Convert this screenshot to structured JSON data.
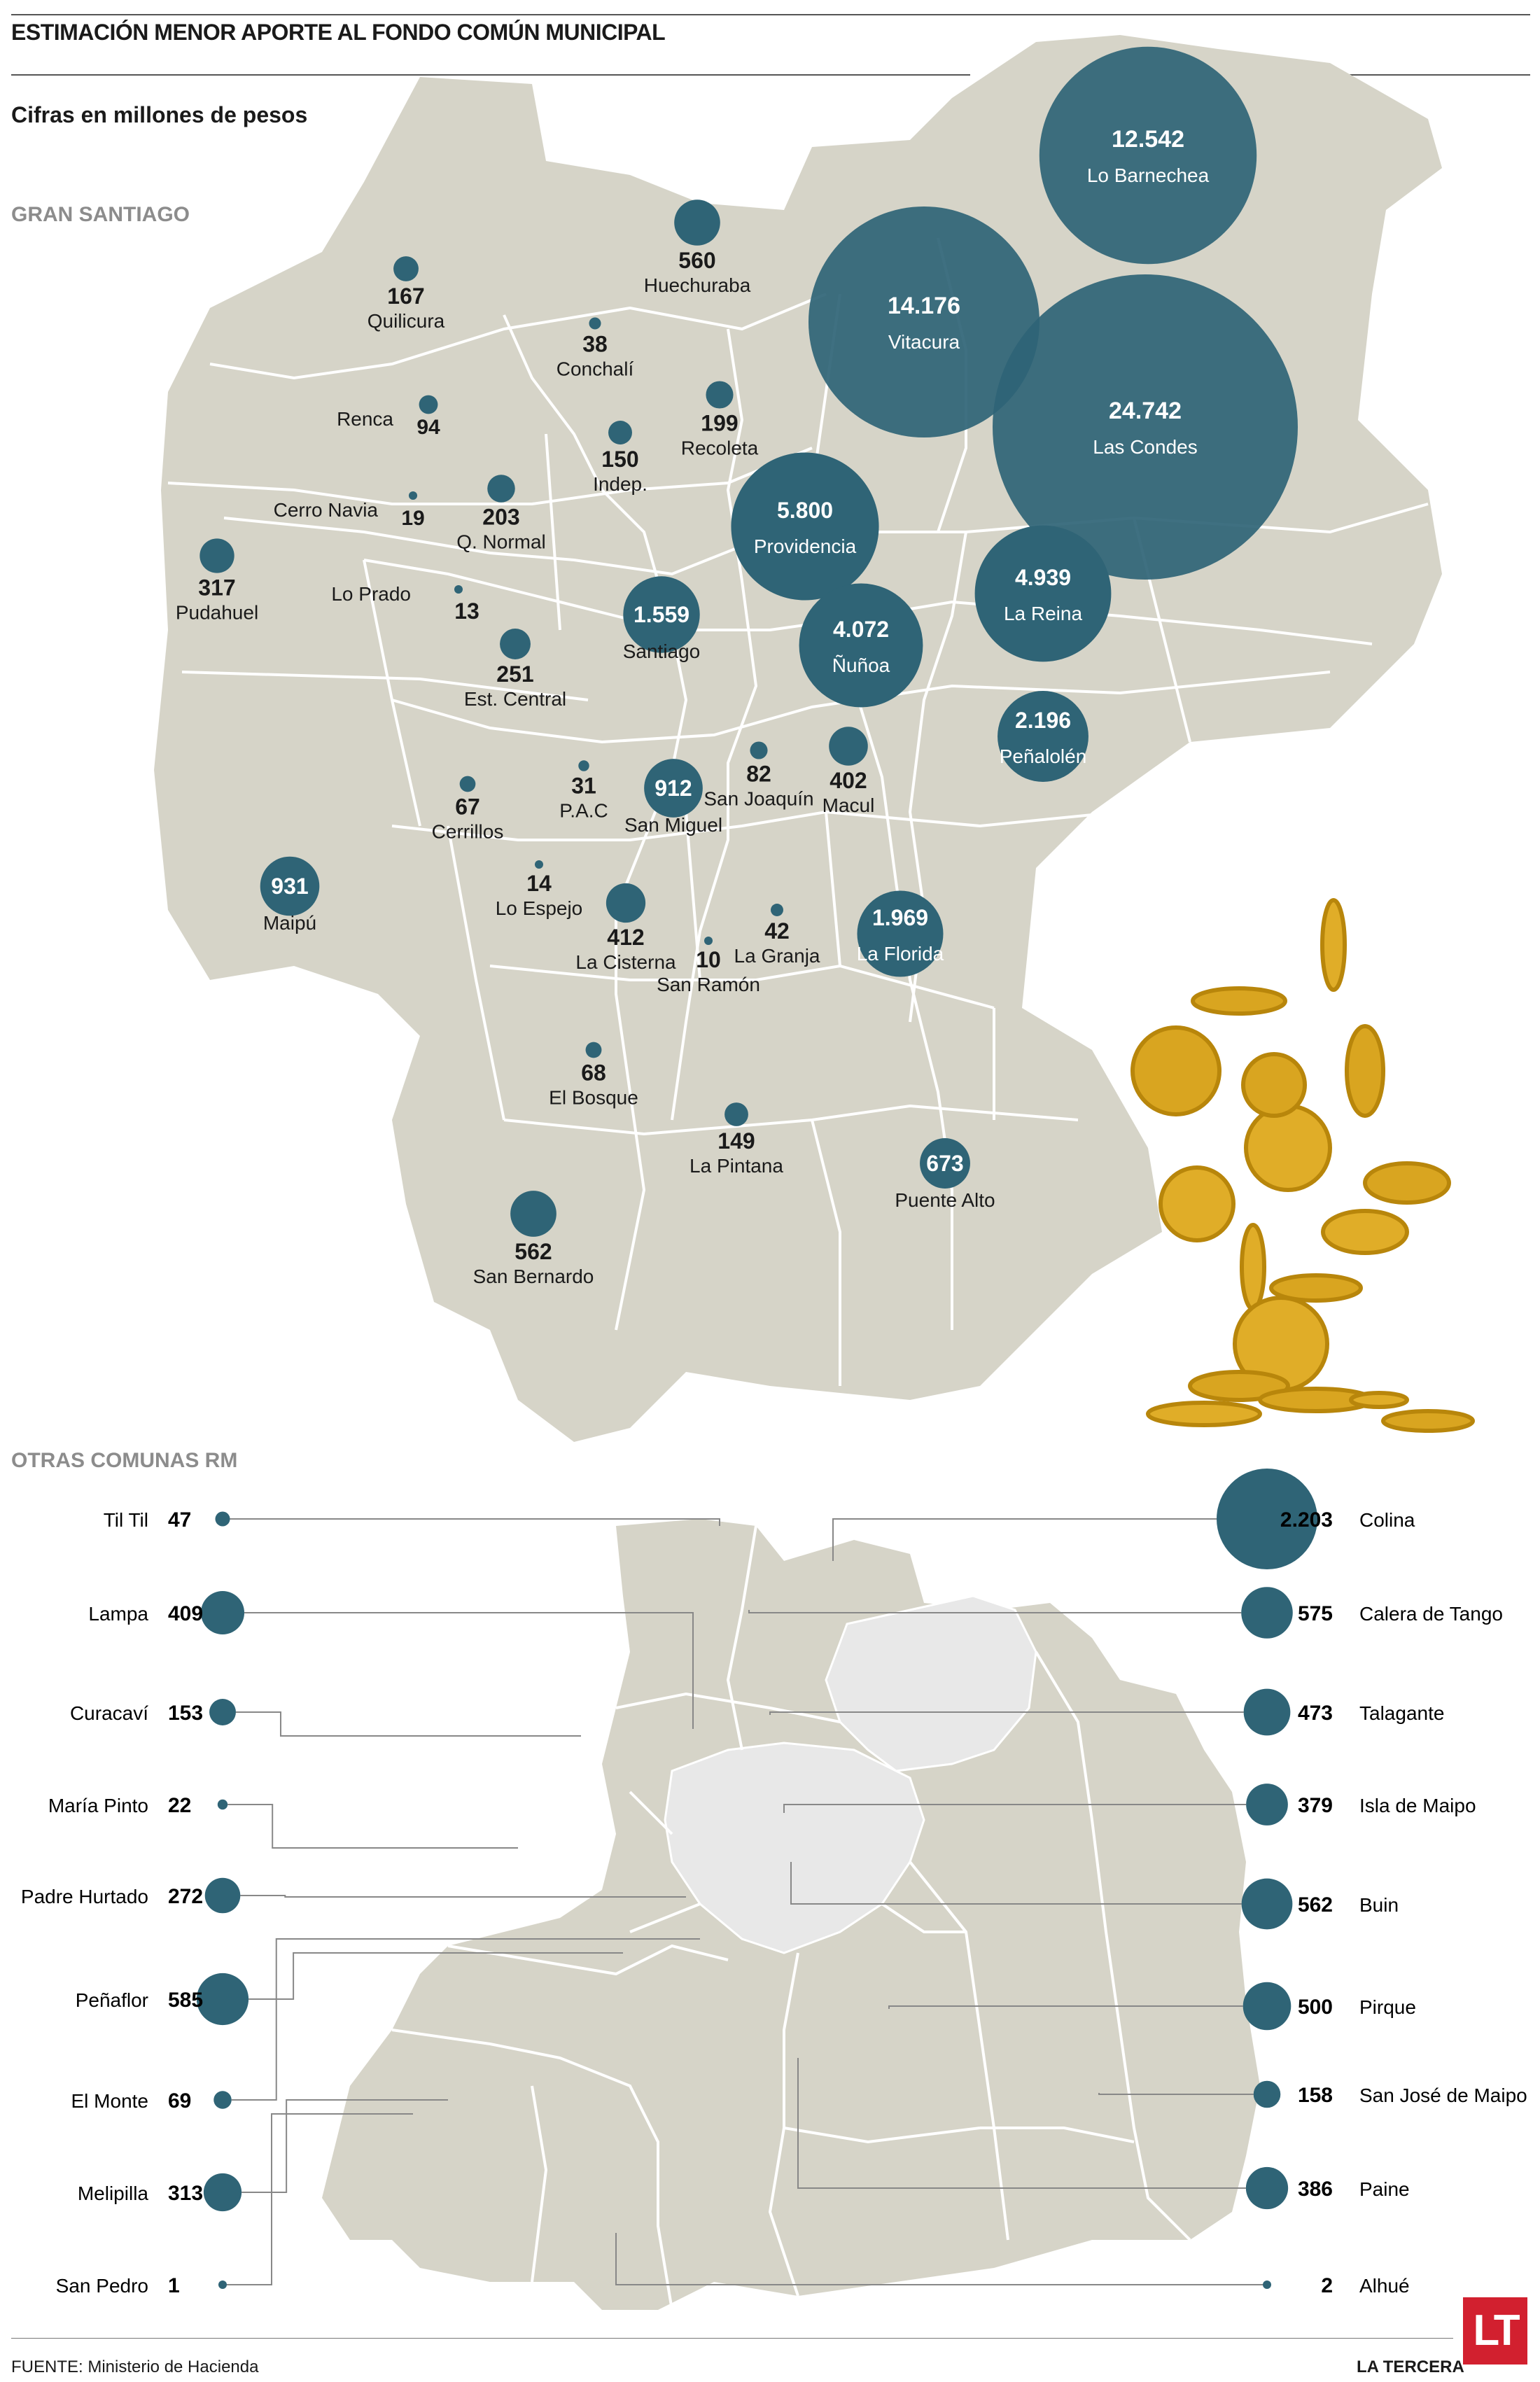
{
  "title": "ESTIMACIÓN MENOR APORTE AL FONDO COMÚN MUNICIPAL",
  "subtitle": "Cifras en millones de pesos",
  "section_gran_santiago": "GRAN SANTIAGO",
  "section_otras": "OTRAS COMUNAS RM",
  "source": "FUENTE: Ministerio de Hacienda",
  "brand": "LA TERCERA",
  "logo_text": "LT",
  "colors": {
    "bubble": "#2f6476",
    "bubble_small": "#3a7485",
    "map_fill": "#d6d4c8",
    "map_stroke": "#ffffff",
    "metro_highlight": "#e8e8e8"
  },
  "gran_santiago": [
    {
      "comuna": "Lo Barnechea",
      "value": "12.542",
      "v": 12542
    },
    {
      "comuna": "Vitacura",
      "value": "14.176",
      "v": 14176
    },
    {
      "comuna": "Las Condes",
      "value": "24.742",
      "v": 24742
    },
    {
      "comuna": "Huechuraba",
      "value": "560",
      "v": 560
    },
    {
      "comuna": "Quilicura",
      "value": "167",
      "v": 167
    },
    {
      "comuna": "Conchalí",
      "value": "38",
      "v": 38
    },
    {
      "comuna": "Renca",
      "value": "94",
      "v": 94
    },
    {
      "comuna": "Recoleta",
      "value": "199",
      "v": 199
    },
    {
      "comuna": "Indep.",
      "value": "150",
      "v": 150
    },
    {
      "comuna": "Cerro Navia",
      "value": "19",
      "v": 19
    },
    {
      "comuna": "Q. Normal",
      "value": "203",
      "v": 203
    },
    {
      "comuna": "Providencia",
      "value": "5.800",
      "v": 5800
    },
    {
      "comuna": "La Reina",
      "value": "4.939",
      "v": 4939
    },
    {
      "comuna": "Pudahuel",
      "value": "317",
      "v": 317
    },
    {
      "comuna": "Lo Prado",
      "value": "13",
      "v": 13
    },
    {
      "comuna": "Santiago",
      "value": "1.559",
      "v": 1559
    },
    {
      "comuna": "Ñuñoa",
      "value": "4.072",
      "v": 4072
    },
    {
      "comuna": "Est. Central",
      "value": "251",
      "v": 251
    },
    {
      "comuna": "Peñalolén",
      "value": "2.196",
      "v": 2196
    },
    {
      "comuna": "Cerrillos",
      "value": "67",
      "v": 67
    },
    {
      "comuna": "P.A.C",
      "value": "31",
      "v": 31
    },
    {
      "comuna": "San Miguel",
      "value": "912",
      "v": 912
    },
    {
      "comuna": "San Joaquín",
      "value": "82",
      "v": 82
    },
    {
      "comuna": "Macul",
      "value": "402",
      "v": 402
    },
    {
      "comuna": "Maipú",
      "value": "931",
      "v": 931
    },
    {
      "comuna": "Lo Espejo",
      "value": "14",
      "v": 14
    },
    {
      "comuna": "La Cisterna",
      "value": "412",
      "v": 412
    },
    {
      "comuna": "San Ramón",
      "value": "10",
      "v": 10
    },
    {
      "comuna": "La Granja",
      "value": "42",
      "v": 42
    },
    {
      "comuna": "La Florida",
      "value": "1.969",
      "v": 1969
    },
    {
      "comuna": "El Bosque",
      "value": "68",
      "v": 68
    },
    {
      "comuna": "La Pintana",
      "value": "149",
      "v": 149
    },
    {
      "comuna": "Puente Alto",
      "value": "673",
      "v": 673
    },
    {
      "comuna": "San Bernardo",
      "value": "562",
      "v": 562
    }
  ],
  "otras_left": [
    {
      "comuna": "Til Til",
      "value": "47",
      "v": 47
    },
    {
      "comuna": "Lampa",
      "value": "409",
      "v": 409
    },
    {
      "comuna": "Curacaví",
      "value": "153",
      "v": 153
    },
    {
      "comuna": "María Pinto",
      "value": "22",
      "v": 22
    },
    {
      "comuna": "Padre Hurtado",
      "value": "272",
      "v": 272
    },
    {
      "comuna": "Peñaflor",
      "value": "585",
      "v": 585
    },
    {
      "comuna": "El Monte",
      "value": "69",
      "v": 69
    },
    {
      "comuna": "Melipilla",
      "value": "313",
      "v": 313
    },
    {
      "comuna": "San Pedro",
      "value": "1",
      "v": 1
    }
  ],
  "otras_right": [
    {
      "comuna": "Colina",
      "value": "2.203",
      "v": 2203
    },
    {
      "comuna": "Calera de Tango",
      "value": "575",
      "v": 575
    },
    {
      "comuna": "Talagante",
      "value": "473",
      "v": 473
    },
    {
      "comuna": "Isla de Maipo",
      "value": "379",
      "v": 379
    },
    {
      "comuna": "Buin",
      "value": "562",
      "v": 562
    },
    {
      "comuna": "Pirque",
      "value": "500",
      "v": 500
    },
    {
      "comuna": "San José de Maipo",
      "value": "158",
      "v": 158
    },
    {
      "comuna": "Paine",
      "value": "386",
      "v": 386
    },
    {
      "comuna": "Alhué",
      "value": "2",
      "v": 2
    }
  ]
}
